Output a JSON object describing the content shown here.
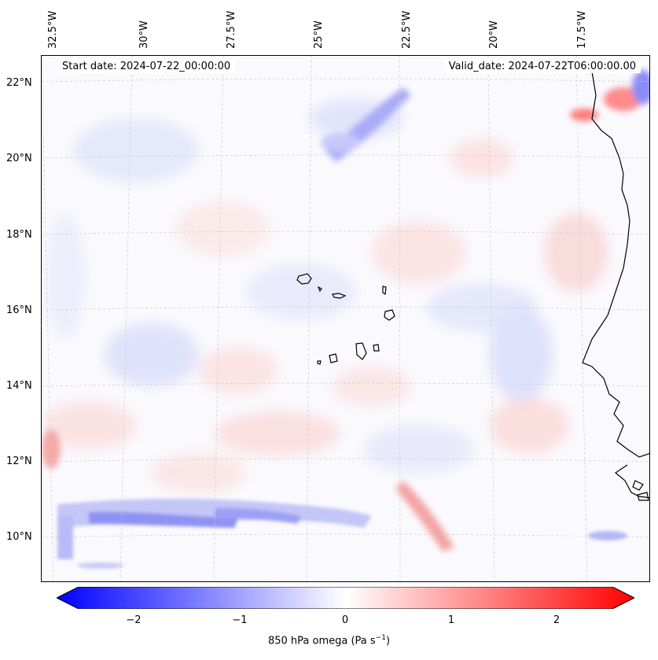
{
  "header": {
    "start_date": "Start date: 2024-07-22_00:00:00",
    "valid_date": "Valid_date: 2024-07-22T06:00:00.00"
  },
  "axes": {
    "lon_labels": [
      "32.5°W",
      "30°W",
      "27.5°W",
      "25°W",
      "22.5°W",
      "20°W",
      "17.5°W"
    ],
    "lat_labels": [
      "22°N",
      "20°N",
      "18°N",
      "16°N",
      "14°N",
      "12°N",
      "10°N"
    ]
  },
  "colorbar": {
    "label_main": "850 hPa omega (Pa s",
    "label_exp": "−1",
    "label_close": ")",
    "ticks": [
      "−2",
      "−1",
      "0",
      "1",
      "2"
    ],
    "min_color": "#0000ff",
    "mid_color": "#ffffff",
    "max_color": "#ff0000"
  },
  "colors": {
    "coast": "#000000",
    "grid": "#c8c8c8"
  }
}
